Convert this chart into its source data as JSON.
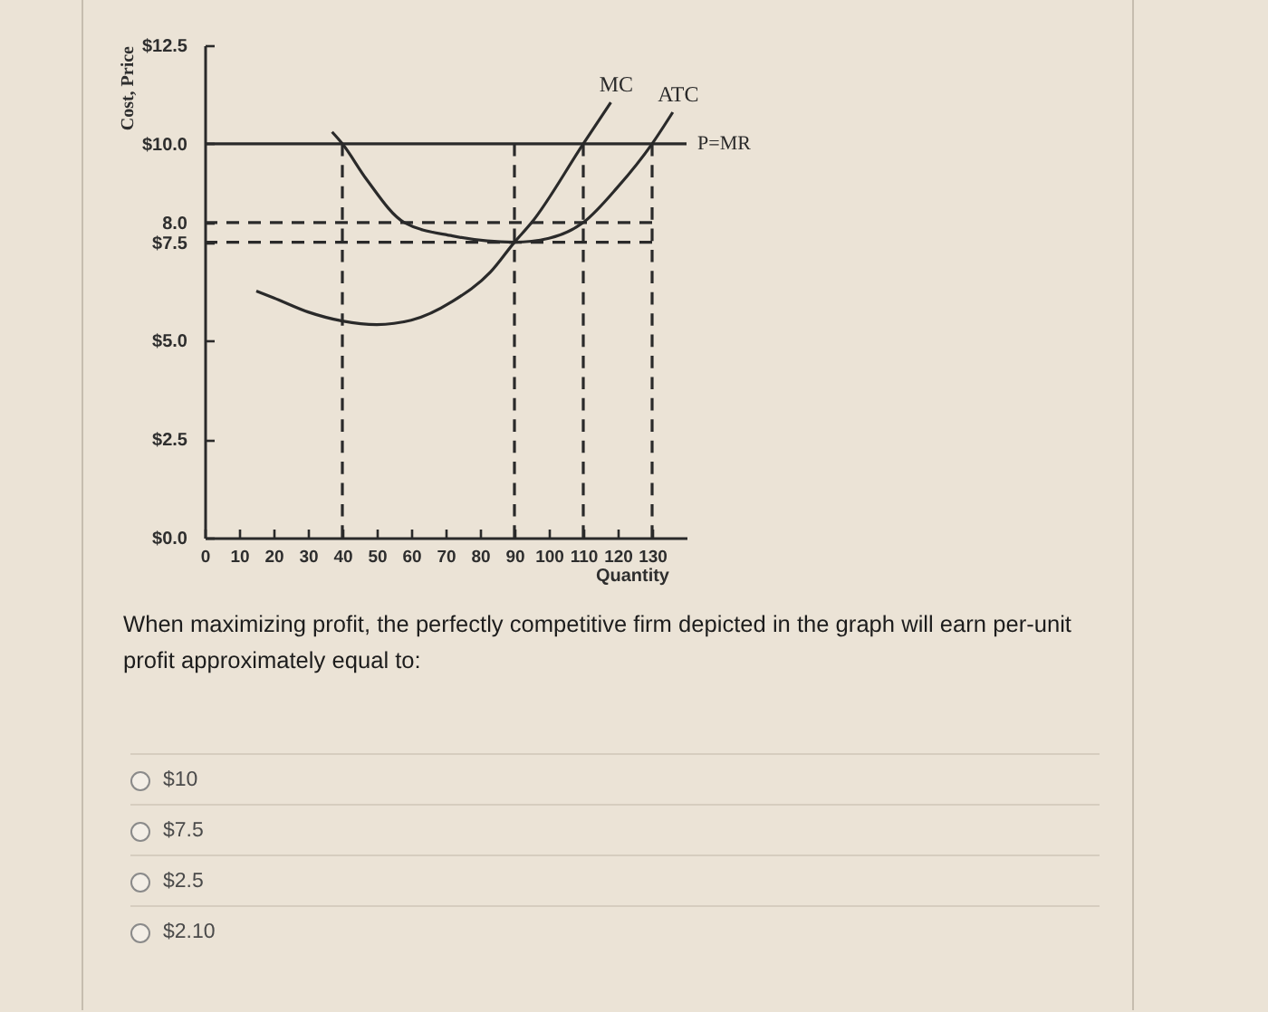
{
  "chart_data": {
    "type": "line",
    "xlabel": "Quantity",
    "ylabel": "Cost, Price",
    "xlim": [
      0,
      140
    ],
    "xticks": [
      0,
      10,
      20,
      30,
      40,
      50,
      60,
      70,
      80,
      90,
      100,
      110,
      120,
      130
    ],
    "ylim": [
      0,
      12.5
    ],
    "yticks": [
      {
        "value": 0,
        "label": "$0.0"
      },
      {
        "value": 2.5,
        "label": "$2.5"
      },
      {
        "value": 5,
        "label": "$5.0"
      },
      {
        "value": 7.5,
        "label": "$7.5"
      },
      {
        "value": 8,
        "label": "8.0"
      },
      {
        "value": 10,
        "label": "$10.0"
      },
      {
        "value": 12.5,
        "label": "$12.5"
      }
    ],
    "series": [
      {
        "name": "MC",
        "color": "#2a2a2a",
        "x": [
          15,
          20,
          30,
          40,
          50,
          60,
          72,
          83,
          90,
          95,
          110,
          118
        ],
        "values": [
          6.26,
          6.09,
          5.73,
          5.5,
          5.41,
          5.52,
          6.0,
          6.74,
          7.5,
          8.0,
          10,
          11.05
        ]
      },
      {
        "name": "ATC",
        "color": "#2a2a2a",
        "x": [
          37,
          40,
          47,
          58,
          72,
          90,
          100,
          110,
          120,
          130,
          136
        ],
        "values": [
          10.3,
          10,
          9.1,
          8,
          7.66,
          7.5,
          7.6,
          8,
          8.9,
          10,
          10.8
        ]
      },
      {
        "color": "#2a2a2a",
        "line_style": "dashed",
        "x": [
          0,
          130
        ],
        "values": [
          8,
          8
        ]
      },
      {
        "color": "#2a2a2a",
        "line_style": "dashed",
        "x": [
          0,
          130
        ],
        "values": [
          7.5,
          7.5
        ]
      },
      {
        "color": "#2a2a2a",
        "line_style": "dashed",
        "x": [
          40,
          40
        ],
        "values": [
          0,
          10
        ]
      },
      {
        "color": "#2a2a2a",
        "line_style": "dashed",
        "x": [
          90,
          90
        ],
        "values": [
          0,
          10
        ]
      },
      {
        "color": "#2a2a2a",
        "line_style": "dashed",
        "x": [
          110,
          110
        ],
        "values": [
          0,
          10
        ]
      },
      {
        "color": "#2a2a2a",
        "line_style": "dashed",
        "x": [
          130,
          130
        ],
        "values": [
          0,
          10
        ]
      }
    ],
    "ref_lines": [
      {
        "axis": "y",
        "value": 10,
        "label": "P=MR",
        "color": "#2a2a2a"
      }
    ],
    "annotations": [
      "When maximizing profit, the perfectly competitive firm depicted in the graph will earn per-unit profit approximately equal to:",
      "$10",
      "$7.5",
      "$2.5",
      "$2.10"
    ]
  }
}
